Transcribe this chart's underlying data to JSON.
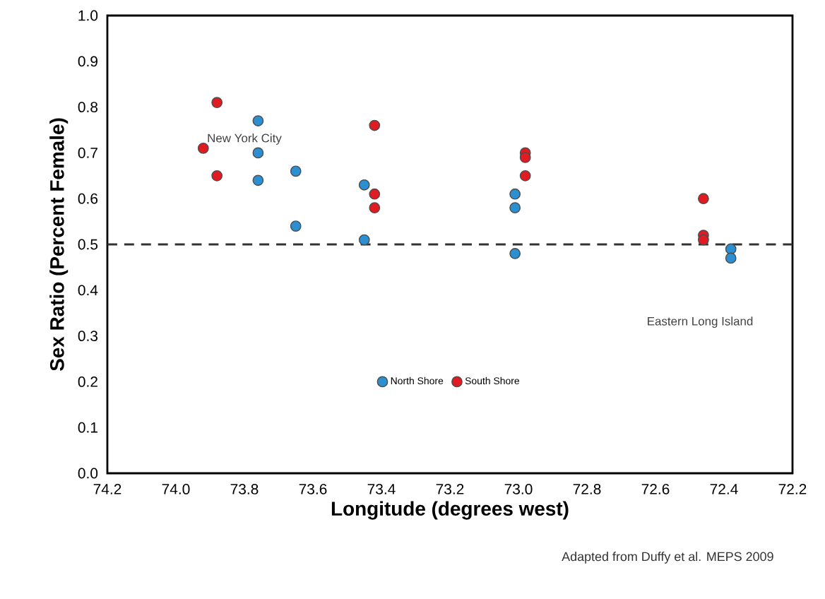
{
  "chart_data": {
    "type": "scatter",
    "xlabel": "Longitude (degrees west)",
    "ylabel": "Sex Ratio (Percent Female)",
    "xlim": [
      74.2,
      72.2
    ],
    "ylim": [
      0,
      1
    ],
    "xticks": [
      {
        "value": 74.2,
        "label": "74.2"
      },
      {
        "value": 74.0,
        "label": "74.0"
      },
      {
        "value": 73.8,
        "label": "73.8"
      },
      {
        "value": 73.6,
        "label": "73.6"
      },
      {
        "value": 73.4,
        "label": "73.4"
      },
      {
        "value": 73.2,
        "label": "73.2"
      },
      {
        "value": 73.0,
        "label": "73.0"
      },
      {
        "value": 72.8,
        "label": "72.8"
      },
      {
        "value": 72.6,
        "label": "72.6"
      },
      {
        "value": 72.4,
        "label": "72.4"
      },
      {
        "value": 72.2,
        "label": "72.2"
      }
    ],
    "yticks": [
      {
        "value": 0,
        "label": "0.0"
      },
      0.1,
      0.2,
      0.3,
      0.4,
      0.5,
      0.6,
      0.7,
      0.8,
      0.9,
      {
        "value": 1,
        "label": "1.0"
      }
    ],
    "series": [
      {
        "name": "North Shore",
        "color": "#2b8fd1",
        "x": [
          73.76,
          73.76,
          73.76,
          73.65,
          73.65,
          73.45,
          73.45,
          73.01,
          73.01,
          73.01,
          72.38,
          72.38
        ],
        "values": [
          0.77,
          0.7,
          0.64,
          0.66,
          0.54,
          0.63,
          0.51,
          0.61,
          0.58,
          0.48,
          0.49,
          0.47
        ]
      },
      {
        "name": "South Shore",
        "color": "#e11b22",
        "x": [
          73.88,
          73.92,
          73.88,
          73.42,
          73.42,
          73.42,
          72.98,
          72.98,
          72.98,
          72.46,
          72.46,
          72.46
        ],
        "values": [
          0.81,
          0.71,
          0.65,
          0.76,
          0.61,
          0.58,
          0.7,
          0.69,
          0.65,
          0.6,
          0.52,
          0.51
        ]
      }
    ],
    "marker": "circle",
    "grid": false,
    "legend": "bottom",
    "ref_lines": [
      {
        "axis": "y",
        "value": 0.5,
        "line_style": "dashed",
        "color": "#333333"
      }
    ],
    "annotations": [
      "New York City",
      "Eastern Long Island",
      "Adapted from Duffy et al. MEPS 2009"
    ]
  }
}
